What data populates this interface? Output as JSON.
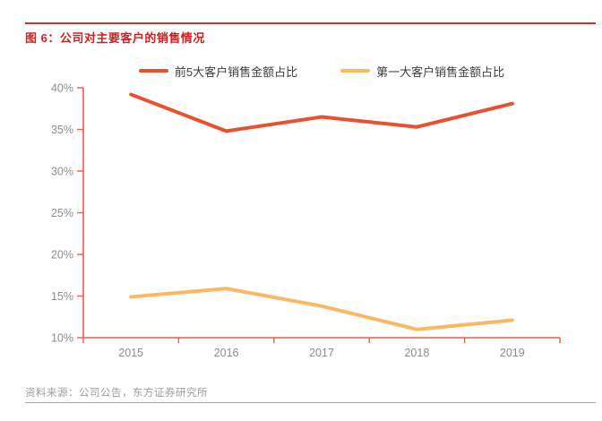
{
  "header": {
    "title": "图 6：公司对主要客户的销售情况"
  },
  "footer": {
    "source": "资料来源：公司公告，东方证券研究所"
  },
  "colors": {
    "title_red": "#cc1f1f",
    "top_rule": "#c2362b",
    "bottom_rule": "#ee8475",
    "axis": "#f25b49",
    "axis_label": "#8c8c8c",
    "legend_text": "#3d3d3d",
    "source_text": "#9c9c9c"
  },
  "chart_data": {
    "type": "line",
    "title": "",
    "xlabel": "",
    "ylabel": "",
    "grid": false,
    "legend_position": "top-center",
    "categories": [
      "2015",
      "2016",
      "2017",
      "2018",
      "2019"
    ],
    "series": [
      {
        "name": "前5大客户销售金额占比",
        "color": "#e8502e",
        "values": [
          39.2,
          34.8,
          36.5,
          35.3,
          38.1
        ]
      },
      {
        "name": "第一大客户销售金额占比",
        "color": "#fbb862",
        "values": [
          14.9,
          15.9,
          13.8,
          11.0,
          12.1
        ]
      }
    ],
    "ylim": [
      10,
      40
    ],
    "ytick_step": 5,
    "ytick_labels": [
      "10%",
      "15%",
      "20%",
      "25%",
      "30%",
      "35%",
      "40%"
    ]
  }
}
